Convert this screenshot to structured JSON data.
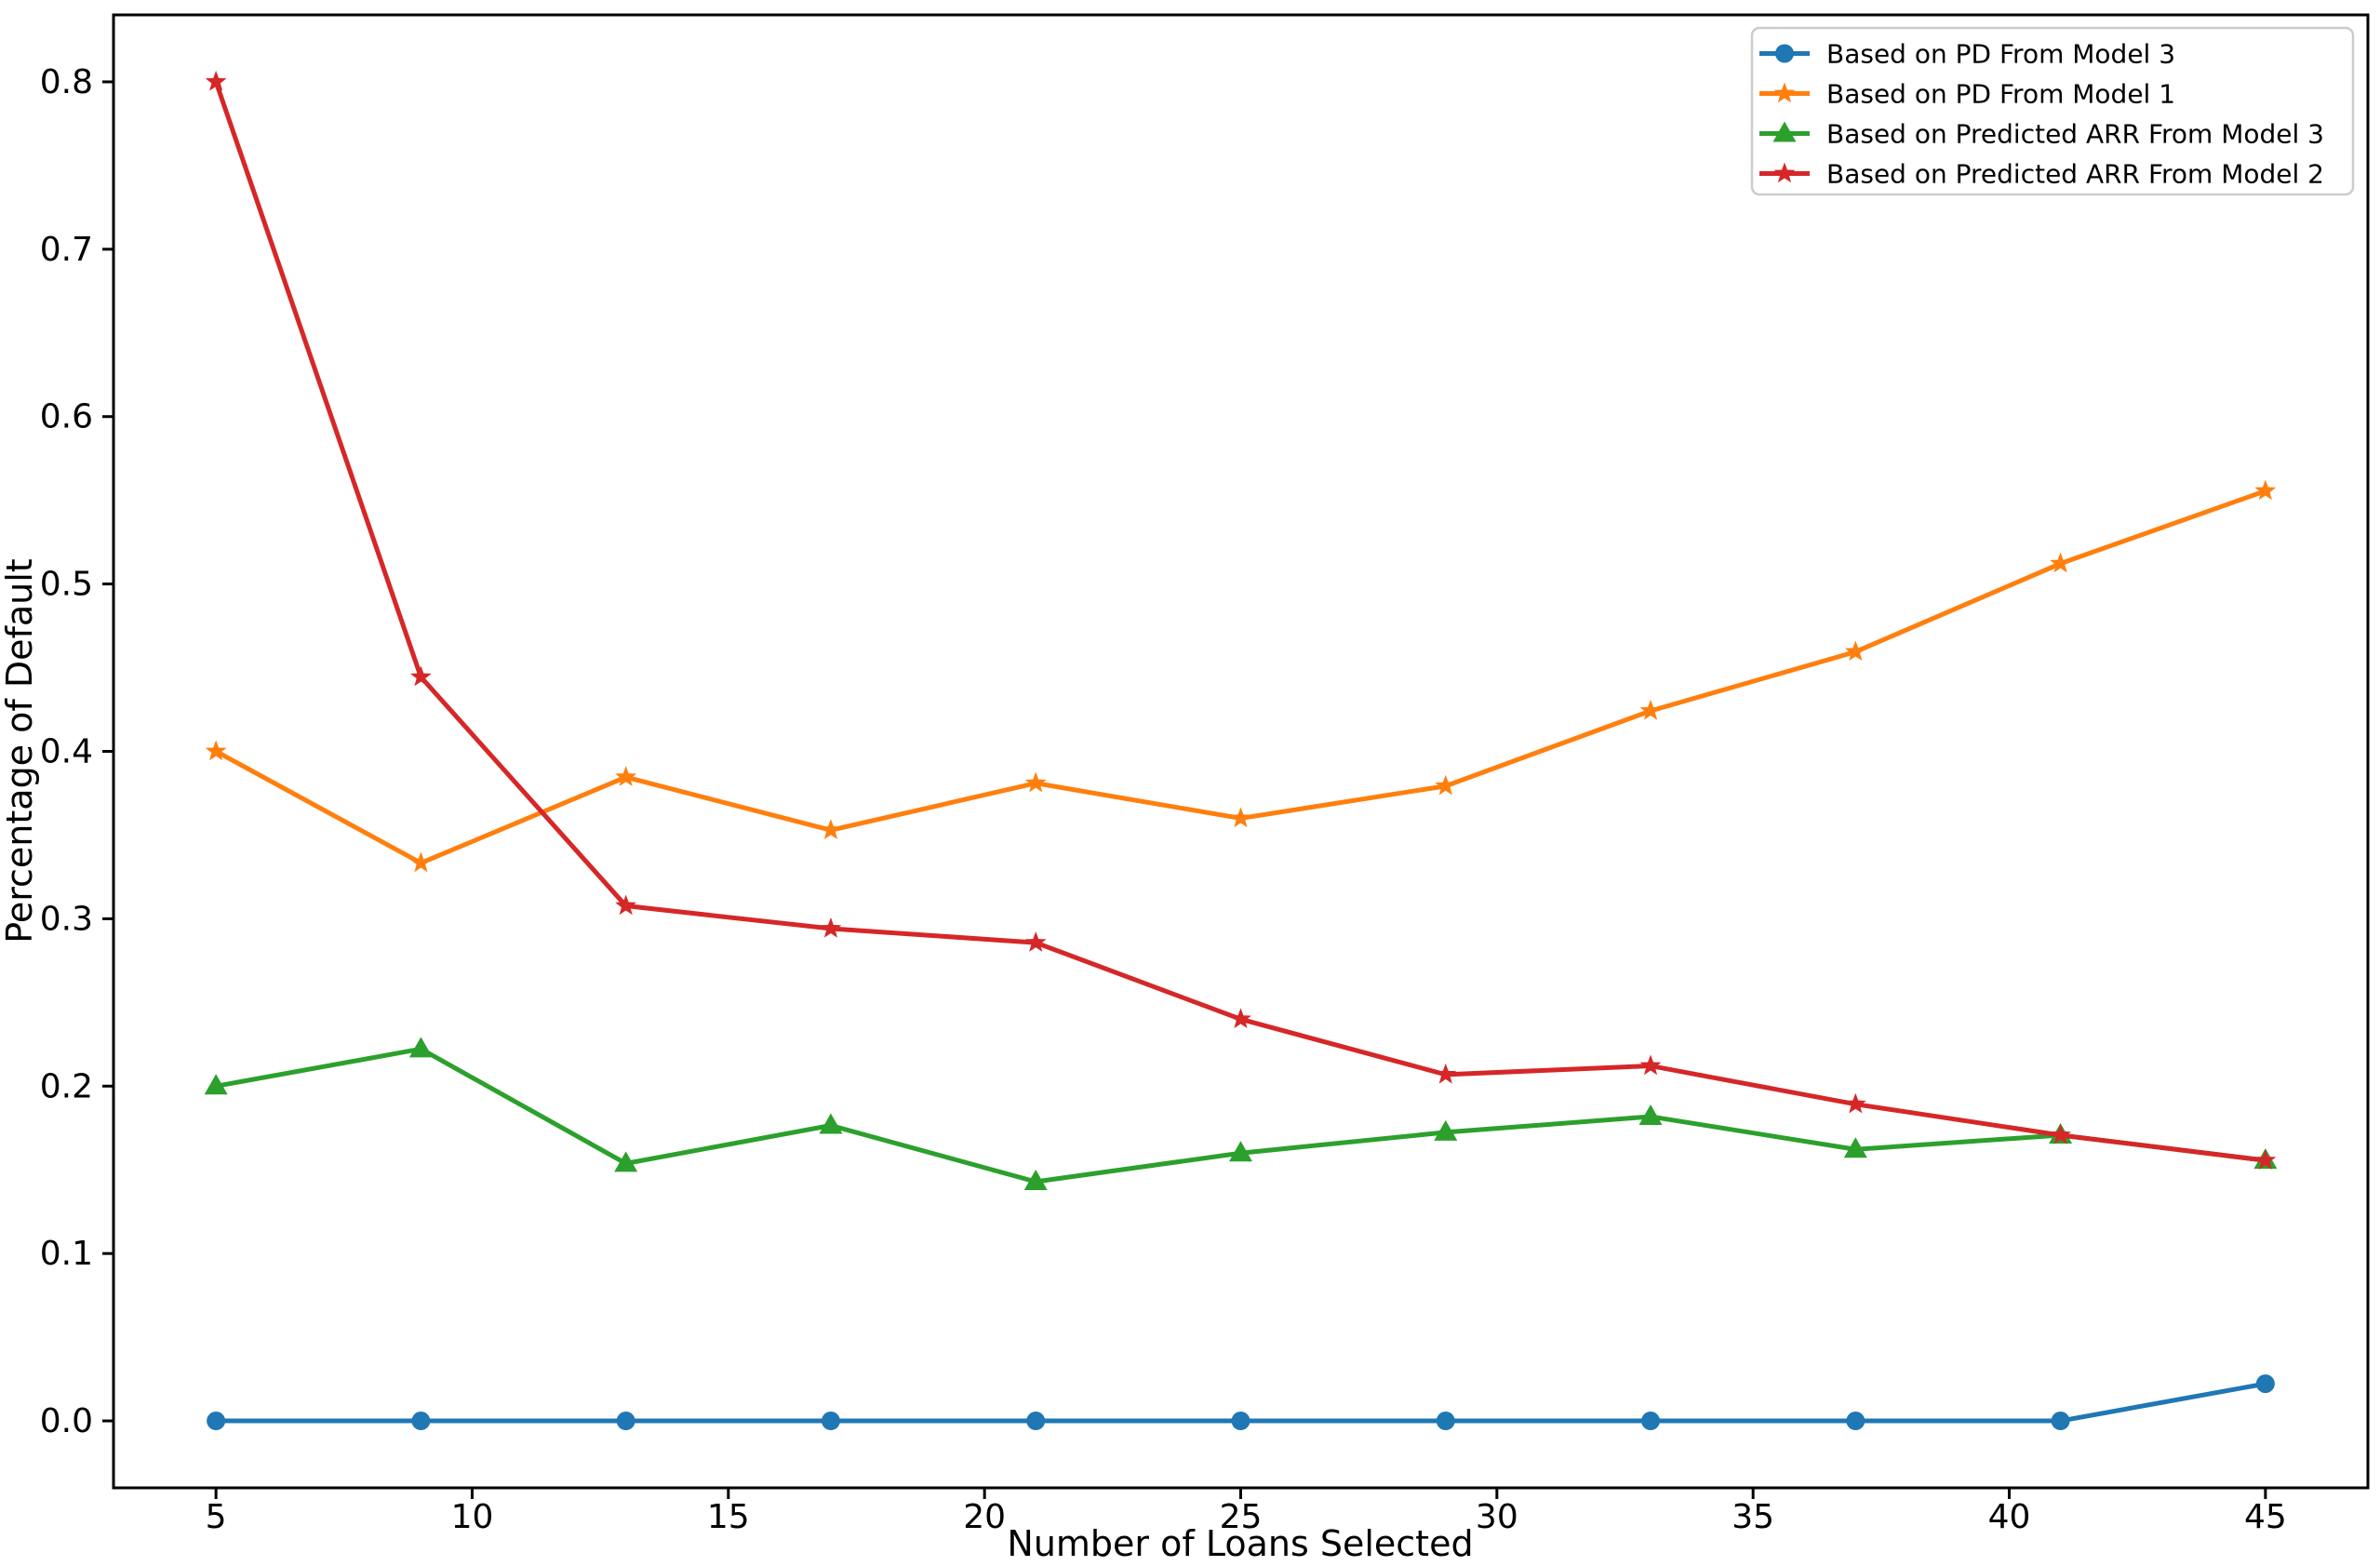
{
  "figure": {
    "background": "#ffffff",
    "spine_color": "#000000",
    "text_color": "#000000"
  },
  "chart_data": {
    "type": "line",
    "title": "",
    "xlabel": "Number of Loans Selected",
    "ylabel": "Percentage of Default",
    "x": [
      5,
      9,
      13,
      17,
      21,
      25,
      29,
      33,
      37,
      41,
      45
    ],
    "series": [
      {
        "name": "Based on PD From Model 3",
        "color": "#1f77b4",
        "marker": "circle",
        "values": [
          0.0,
          0.0,
          0.0,
          0.0,
          0.0,
          0.0,
          0.0,
          0.0,
          0.0,
          0.0,
          0.0222
        ]
      },
      {
        "name": "Based on PD From Model 1",
        "color": "#ff7f0e",
        "marker": "star",
        "values": [
          0.4,
          0.3333,
          0.3846,
          0.3529,
          0.381,
          0.36,
          0.3793,
          0.4242,
          0.4595,
          0.5122,
          0.5556
        ]
      },
      {
        "name": "Based on Predicted ARR From Model 3",
        "color": "#2ca02c",
        "marker": "triangle-up",
        "values": [
          0.2,
          0.2222,
          0.1538,
          0.1765,
          0.1429,
          0.16,
          0.1724,
          0.1818,
          0.1622,
          0.1707,
          0.1556
        ]
      },
      {
        "name": "Based on Predicted ARR From Model 2",
        "color": "#d62728",
        "marker": "star",
        "values": [
          0.8,
          0.4444,
          0.3077,
          0.2941,
          0.2857,
          0.24,
          0.2069,
          0.2121,
          0.1892,
          0.1707,
          0.1556
        ]
      }
    ],
    "xticks": [
      "5",
      "10",
      "15",
      "20",
      "25",
      "30",
      "35",
      "40",
      "45"
    ],
    "yticks": [
      "0.0",
      "0.1",
      "0.2",
      "0.3",
      "0.4",
      "0.5",
      "0.6",
      "0.7",
      "0.8"
    ],
    "xlim": [
      3,
      47
    ],
    "ylim": [
      -0.04,
      0.84
    ],
    "grid": false,
    "legend": {
      "position": "upper right",
      "border_color": "#cccccc",
      "background": "#ffffff"
    }
  }
}
